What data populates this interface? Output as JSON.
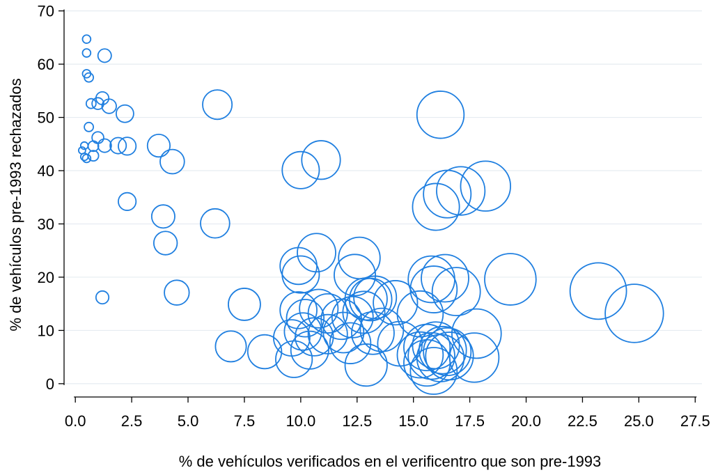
{
  "chart_data": {
    "type": "scatter",
    "subtype": "bubble",
    "title": "",
    "xlabel": "% de vehículos verificados en el verificentro que son pre-1993",
    "ylabel": "% de vehículos pre-1993 rechazados",
    "xlim": [
      -0.5,
      27.8
    ],
    "ylim": [
      -2.5,
      71
    ],
    "x_ticks": [
      0.0,
      2.5,
      5.0,
      7.5,
      10.0,
      12.5,
      15.0,
      17.5,
      20.0,
      22.5,
      25.0,
      27.5
    ],
    "x_tick_labels": [
      "0.0",
      "2.5",
      "5.0",
      "7.5",
      "10.0",
      "12.5",
      "15.0",
      "17.5",
      "20.0",
      "22.5",
      "25.0",
      "27.5"
    ],
    "y_ticks": [
      0,
      10,
      20,
      30,
      40,
      50,
      60,
      70
    ],
    "y_tick_labels": [
      "0",
      "10",
      "20",
      "30",
      "40",
      "50",
      "60",
      "70"
    ],
    "grid": true,
    "grid_axis": "y",
    "legend": "none",
    "marker_color": "#1f7fe0",
    "size_note_units": "bubble size proportional to x value",
    "points": [
      {
        "x": 0.5,
        "y": 64.7
      },
      {
        "x": 0.5,
        "y": 62.1
      },
      {
        "x": 1.3,
        "y": 61.6
      },
      {
        "x": 0.5,
        "y": 58.2
      },
      {
        "x": 0.6,
        "y": 57.5
      },
      {
        "x": 1.2,
        "y": 53.6
      },
      {
        "x": 0.7,
        "y": 52.6
      },
      {
        "x": 1.0,
        "y": 52.6
      },
      {
        "x": 1.5,
        "y": 52.1
      },
      {
        "x": 2.2,
        "y": 50.7
      },
      {
        "x": 0.6,
        "y": 48.2
      },
      {
        "x": 1.0,
        "y": 46.2
      },
      {
        "x": 0.4,
        "y": 44.7
      },
      {
        "x": 0.8,
        "y": 44.6
      },
      {
        "x": 1.3,
        "y": 44.7
      },
      {
        "x": 1.9,
        "y": 44.7
      },
      {
        "x": 2.3,
        "y": 44.6
      },
      {
        "x": 0.3,
        "y": 43.8
      },
      {
        "x": 0.4,
        "y": 42.6
      },
      {
        "x": 0.5,
        "y": 42.3
      },
      {
        "x": 0.8,
        "y": 42.8
      },
      {
        "x": 3.7,
        "y": 44.7
      },
      {
        "x": 4.3,
        "y": 41.7
      },
      {
        "x": 2.3,
        "y": 34.2
      },
      {
        "x": 3.9,
        "y": 31.4
      },
      {
        "x": 4.0,
        "y": 26.4
      },
      {
        "x": 1.2,
        "y": 16.2
      },
      {
        "x": 4.5,
        "y": 17.1
      },
      {
        "x": 6.3,
        "y": 52.4
      },
      {
        "x": 6.2,
        "y": 30.1
      },
      {
        "x": 6.9,
        "y": 7.0
      },
      {
        "x": 7.5,
        "y": 14.9
      },
      {
        "x": 8.4,
        "y": 6.0
      },
      {
        "x": 10.0,
        "y": 40.1
      },
      {
        "x": 10.9,
        "y": 42.0
      },
      {
        "x": 16.2,
        "y": 50.5
      },
      {
        "x": 16.0,
        "y": 33.2
      },
      {
        "x": 16.5,
        "y": 35.6
      },
      {
        "x": 17.1,
        "y": 36.2
      },
      {
        "x": 18.2,
        "y": 37.1
      },
      {
        "x": 10.7,
        "y": 24.6
      },
      {
        "x": 9.9,
        "y": 22.1
      },
      {
        "x": 10.0,
        "y": 20.5
      },
      {
        "x": 12.6,
        "y": 23.6
      },
      {
        "x": 12.4,
        "y": 20.4
      },
      {
        "x": 15.8,
        "y": 19.6
      },
      {
        "x": 16.4,
        "y": 19.8
      },
      {
        "x": 16.9,
        "y": 17.3
      },
      {
        "x": 15.9,
        "y": 17.7
      },
      {
        "x": 19.3,
        "y": 19.6
      },
      {
        "x": 23.2,
        "y": 17.4
      },
      {
        "x": 24.8,
        "y": 13.2
      },
      {
        "x": 9.9,
        "y": 13.8
      },
      {
        "x": 10.2,
        "y": 12.3
      },
      {
        "x": 10.8,
        "y": 14.1
      },
      {
        "x": 11.2,
        "y": 13.2
      },
      {
        "x": 11.8,
        "y": 12.1
      },
      {
        "x": 12.3,
        "y": 12.5
      },
      {
        "x": 12.9,
        "y": 15.9
      },
      {
        "x": 13.1,
        "y": 15.8
      },
      {
        "x": 13.3,
        "y": 16.2
      },
      {
        "x": 12.8,
        "y": 13.4
      },
      {
        "x": 14.2,
        "y": 15.2
      },
      {
        "x": 15.3,
        "y": 13.1
      },
      {
        "x": 17.8,
        "y": 9.4
      },
      {
        "x": 9.6,
        "y": 8.6
      },
      {
        "x": 10.1,
        "y": 9.8
      },
      {
        "x": 10.6,
        "y": 8.8
      },
      {
        "x": 10.4,
        "y": 6.3
      },
      {
        "x": 11.2,
        "y": 9.3
      },
      {
        "x": 11.9,
        "y": 9.6
      },
      {
        "x": 12.2,
        "y": 7.6
      },
      {
        "x": 13.2,
        "y": 9.5
      },
      {
        "x": 13.6,
        "y": 10.1
      },
      {
        "x": 14.4,
        "y": 7.5
      },
      {
        "x": 15.3,
        "y": 5.4
      },
      {
        "x": 15.6,
        "y": 6.8
      },
      {
        "x": 15.8,
        "y": 5.2
      },
      {
        "x": 16.0,
        "y": 7.2
      },
      {
        "x": 16.3,
        "y": 6.3
      },
      {
        "x": 16.5,
        "y": 6.0
      },
      {
        "x": 15.6,
        "y": 3.9
      },
      {
        "x": 15.9,
        "y": 2.4
      },
      {
        "x": 16.2,
        "y": 4.8
      },
      {
        "x": 16.6,
        "y": 5.2
      },
      {
        "x": 17.7,
        "y": 4.9
      },
      {
        "x": 9.7,
        "y": 4.6
      },
      {
        "x": 12.9,
        "y": 3.5
      }
    ]
  }
}
